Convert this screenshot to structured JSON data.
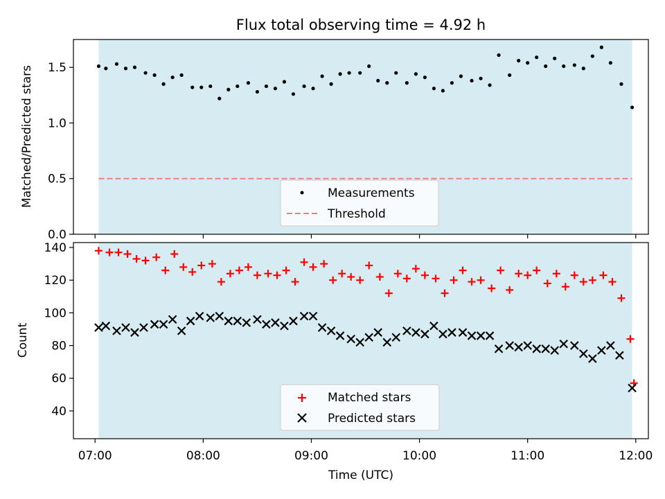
{
  "title": "Flux total observing time = 4.92 h",
  "colors": {
    "observing_band": "#add8e6",
    "measurements": "#000000",
    "threshold": "#f08080",
    "matched": "#ff0000",
    "predicted": "#000000"
  },
  "chart_data": [
    {
      "type": "scatter",
      "ylabel": "Matched/Predicted stars",
      "ylim": [
        0,
        1.75
      ],
      "yticks": [
        0.0,
        0.5,
        1.0,
        1.5
      ],
      "ytick_labels": [
        "0.0",
        "0.5",
        "1.0",
        "1.5"
      ],
      "observing_band": {
        "start": "07:02",
        "end": "11:58"
      },
      "legend_position": "lower-center",
      "series": [
        {
          "name": "Measurements",
          "marker": "dot",
          "x": [
            "07:02",
            "07:06",
            "07:12",
            "07:17",
            "07:22",
            "07:28",
            "07:33",
            "07:38",
            "07:43",
            "07:48",
            "07:54",
            "07:59",
            "08:04",
            "08:09",
            "08:14",
            "08:19",
            "08:25",
            "08:30",
            "08:35",
            "08:40",
            "08:45",
            "08:50",
            "08:56",
            "09:01",
            "09:06",
            "09:11",
            "09:16",
            "09:21",
            "09:27",
            "09:32",
            "09:37",
            "09:42",
            "09:47",
            "09:53",
            "09:58",
            "10:03",
            "10:08",
            "10:13",
            "10:18",
            "10:23",
            "10:29",
            "10:34",
            "10:39",
            "10:44",
            "10:50",
            "10:55",
            "11:00",
            "11:05",
            "11:10",
            "11:15",
            "11:20",
            "11:26",
            "11:31",
            "11:36",
            "11:41",
            "11:46",
            "11:52",
            "11:58"
          ],
          "values": [
            1.51,
            1.49,
            1.53,
            1.49,
            1.5,
            1.45,
            1.43,
            1.35,
            1.41,
            1.43,
            1.32,
            1.32,
            1.33,
            1.22,
            1.3,
            1.33,
            1.36,
            1.28,
            1.33,
            1.31,
            1.37,
            1.26,
            1.33,
            1.31,
            1.42,
            1.35,
            1.44,
            1.45,
            1.45,
            1.51,
            1.38,
            1.36,
            1.45,
            1.36,
            1.44,
            1.41,
            1.31,
            1.29,
            1.36,
            1.42,
            1.38,
            1.4,
            1.34,
            1.61,
            1.43,
            1.56,
            1.54,
            1.59,
            1.51,
            1.58,
            1.51,
            1.52,
            1.49,
            1.6,
            1.68,
            1.54,
            1.35,
            1.14
          ]
        },
        {
          "name": "Threshold",
          "style": "dashed",
          "x": [
            "07:02",
            "11:58"
          ],
          "values": [
            0.5,
            0.5
          ]
        }
      ]
    },
    {
      "type": "scatter",
      "xlabel": "Time (UTC)",
      "ylabel": "Count",
      "ylim": [
        23,
        143
      ],
      "yticks": [
        40,
        60,
        80,
        100,
        120,
        140
      ],
      "ytick_labels": [
        "40",
        "60",
        "80",
        "100",
        "120",
        "140"
      ],
      "xlim": [
        "06:48",
        "12:07"
      ],
      "xticks": [
        "07:00",
        "08:00",
        "09:00",
        "10:00",
        "11:00",
        "12:00"
      ],
      "xtick_labels": [
        "07:00",
        "08:00",
        "09:00",
        "10:00",
        "11:00",
        "12:00"
      ],
      "observing_band": {
        "start": "07:02",
        "end": "11:58"
      },
      "legend_position": "lower-center",
      "series": [
        {
          "name": "Matched stars",
          "marker": "plus",
          "x": [
            "07:02",
            "07:08",
            "07:13",
            "07:18",
            "07:23",
            "07:28",
            "07:34",
            "07:39",
            "07:44",
            "07:49",
            "07:54",
            "07:59",
            "08:05",
            "08:10",
            "08:15",
            "08:20",
            "08:25",
            "08:30",
            "08:36",
            "08:41",
            "08:46",
            "08:51",
            "08:56",
            "09:01",
            "09:07",
            "09:12",
            "09:17",
            "09:22",
            "09:27",
            "09:32",
            "09:38",
            "09:43",
            "09:48",
            "09:53",
            "09:58",
            "10:03",
            "10:09",
            "10:14",
            "10:19",
            "10:24",
            "10:29",
            "10:34",
            "10:40",
            "10:45",
            "10:50",
            "10:55",
            "11:00",
            "11:05",
            "11:11",
            "11:16",
            "11:21",
            "11:26",
            "11:31",
            "11:36",
            "11:42",
            "11:47",
            "11:52",
            "11:57",
            "11:59"
          ],
          "values": [
            138,
            137,
            137,
            136,
            133,
            132,
            134,
            126,
            136,
            128,
            125,
            129,
            130,
            119,
            124,
            126,
            128,
            123,
            124,
            123,
            126,
            119,
            131,
            128,
            130,
            120,
            124,
            122,
            120,
            129,
            122,
            112,
            124,
            121,
            127,
            123,
            121,
            112,
            120,
            126,
            119,
            120,
            115,
            126,
            114,
            124,
            123,
            126,
            118,
            124,
            116,
            123,
            119,
            120,
            123,
            119,
            109,
            84,
            57
          ]
        },
        {
          "name": "Predicted stars",
          "marker": "x",
          "x": [
            "07:02",
            "07:06",
            "07:12",
            "07:17",
            "07:22",
            "07:27",
            "07:33",
            "07:38",
            "07:43",
            "07:48",
            "07:53",
            "07:58",
            "08:04",
            "08:09",
            "08:14",
            "08:19",
            "08:24",
            "08:30",
            "08:35",
            "08:40",
            "08:45",
            "08:50",
            "08:56",
            "09:01",
            "09:06",
            "09:11",
            "09:16",
            "09:22",
            "09:27",
            "09:32",
            "09:37",
            "09:42",
            "09:47",
            "09:53",
            "09:58",
            "10:03",
            "10:08",
            "10:13",
            "10:18",
            "10:24",
            "10:29",
            "10:34",
            "10:39",
            "10:44",
            "10:50",
            "10:55",
            "11:00",
            "11:05",
            "11:10",
            "11:15",
            "11:20",
            "11:26",
            "11:31",
            "11:36",
            "11:41",
            "11:46",
            "11:51",
            "11:58"
          ],
          "values": [
            91,
            92,
            89,
            91,
            88,
            91,
            93,
            93,
            96,
            89,
            95,
            98,
            97,
            98,
            95,
            95,
            94,
            96,
            93,
            94,
            92,
            95,
            98,
            98,
            91,
            89,
            86,
            84,
            82,
            85,
            88,
            82,
            85,
            89,
            88,
            87,
            92,
            87,
            88,
            88,
            86,
            86,
            86,
            78,
            80,
            79,
            80,
            78,
            78,
            77,
            81,
            80,
            75,
            72,
            77,
            80,
            74,
            54
          ]
        }
      ]
    }
  ]
}
